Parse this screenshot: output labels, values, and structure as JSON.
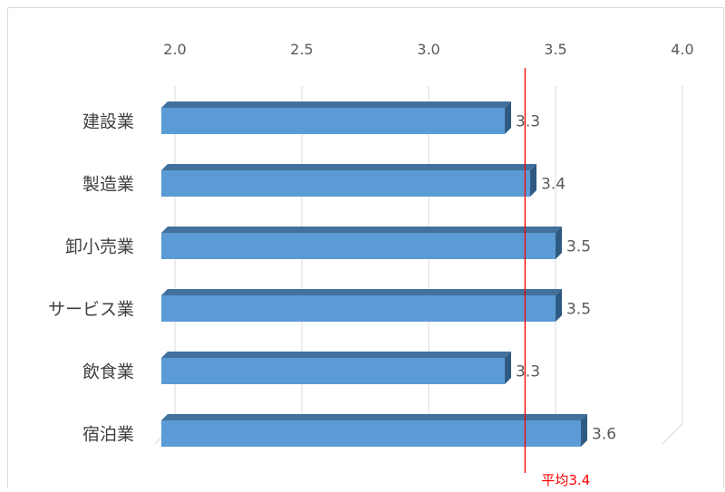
{
  "chart_data": {
    "type": "bar",
    "orientation": "horizontal",
    "categories": [
      "建設業",
      "製造業",
      "卸小売業",
      "サービス業",
      "飲食業",
      "宿泊業"
    ],
    "values": [
      3.3,
      3.4,
      3.5,
      3.5,
      3.3,
      3.6
    ],
    "data_labels": [
      "3.3",
      "3.4",
      "3.5",
      "3.5",
      "3.3",
      "3.6"
    ],
    "xlim": [
      2.0,
      4.0
    ],
    "x_ticks": [
      "2.0",
      "2.5",
      "3.0",
      "3.5",
      "4.0"
    ],
    "x_tick_values": [
      2.0,
      2.5,
      3.0,
      3.5,
      4.0
    ],
    "grid": true,
    "bar_style": "3d",
    "reference_line": {
      "value": 3.38,
      "label": "平均3.4",
      "color": "#ff0000"
    },
    "colors": {
      "bar_front": "#5b9bd5",
      "bar_top": "#41719c",
      "bar_side": "#2e5a82",
      "grid": "#d9d9d9",
      "axis_text": "#595959",
      "category_text": "#404040",
      "reference": "#ff0000"
    }
  }
}
